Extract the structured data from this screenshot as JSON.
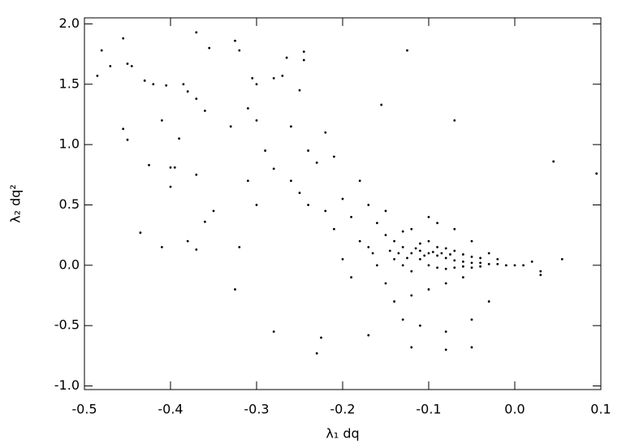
{
  "chart_data": {
    "type": "scatter",
    "xlabel": "λ₁ dq",
    "ylabel": "λ₂ dq²",
    "color": "#000000",
    "xlim": [
      -0.5,
      0.1
    ],
    "ylim": [
      -1.03,
      2.05
    ],
    "xticks": [
      -0.5,
      -0.4,
      -0.3,
      -0.2,
      -0.1,
      {
        "value": 0,
        "label": "0.0"
      },
      0.1
    ],
    "yticks": [
      {
        "value": -1,
        "label": "-1.0"
      },
      -0.5,
      {
        "value": 0,
        "label": "0.0"
      },
      0.5,
      {
        "value": 1,
        "label": "1.0"
      },
      1.5,
      {
        "value": 2,
        "label": "2.0"
      }
    ],
    "x": [
      -0.48,
      -0.47,
      -0.455,
      -0.45,
      -0.445,
      -0.485,
      -0.455,
      -0.45,
      -0.43,
      -0.42,
      -0.405,
      -0.41,
      -0.385,
      -0.38,
      -0.39,
      -0.425,
      -0.4,
      -0.395,
      -0.37,
      -0.36,
      -0.355,
      -0.37,
      -0.37,
      -0.35,
      -0.36,
      -0.38,
      -0.37,
      -0.435,
      -0.41,
      -0.4,
      -0.33,
      -0.325,
      -0.32,
      -0.305,
      -0.3,
      -0.28,
      -0.27,
      -0.265,
      -0.245,
      -0.245,
      -0.25,
      -0.31,
      -0.3,
      -0.29,
      -0.28,
      -0.31,
      -0.3,
      -0.32,
      -0.325,
      -0.28,
      -0.23,
      -0.225,
      -0.26,
      -0.24,
      -0.23,
      -0.22,
      -0.21,
      -0.26,
      -0.25,
      -0.24,
      -0.22,
      -0.2,
      -0.21,
      -0.19,
      -0.18,
      -0.17,
      -0.16,
      -0.15,
      -0.18,
      -0.17,
      -0.2,
      -0.19,
      -0.16,
      -0.155,
      -0.125,
      -0.07,
      0.045,
      0.095,
      -0.15,
      -0.14,
      -0.13,
      -0.12,
      -0.11,
      -0.1,
      -0.09,
      -0.08,
      -0.07,
      -0.06,
      -0.05,
      -0.04,
      -0.03,
      -0.02,
      -0.01,
      0,
      0.01,
      -0.14,
      -0.13,
      -0.12,
      -0.11,
      -0.1,
      -0.09,
      -0.08,
      -0.07,
      -0.06,
      -0.05,
      -0.04,
      -0.13,
      -0.12,
      -0.1,
      -0.09,
      -0.08,
      -0.07,
      -0.06,
      -0.05,
      -0.04,
      -0.15,
      -0.14,
      -0.12,
      -0.1,
      -0.08,
      -0.06,
      -0.13,
      -0.11,
      -0.08,
      -0.05,
      -0.03,
      -0.12,
      -0.08,
      -0.05,
      -0.17,
      -0.1,
      -0.09,
      -0.07,
      -0.05,
      -0.03,
      -0.02,
      0.02,
      0.03,
      0.03,
      0.055,
      -0.11,
      -0.105,
      -0.095,
      -0.085,
      -0.075,
      -0.115,
      -0.125,
      -0.135,
      -0.145,
      -0.165
    ],
    "values": [
      1.78,
      1.65,
      1.88,
      1.67,
      1.65,
      1.57,
      1.13,
      1.04,
      1.53,
      1.5,
      1.49,
      1.2,
      1.5,
      1.44,
      1.05,
      0.83,
      0.81,
      0.81,
      1.38,
      1.28,
      1.8,
      1.93,
      0.75,
      0.45,
      0.36,
      0.2,
      0.13,
      0.27,
      0.15,
      0.65,
      1.15,
      1.86,
      1.78,
      1.55,
      1.5,
      1.55,
      1.57,
      1.72,
      1.77,
      1.7,
      1.45,
      1.3,
      1.2,
      0.95,
      0.8,
      0.7,
      0.5,
      0.15,
      -0.2,
      -0.55,
      -0.73,
      -0.6,
      1.15,
      0.95,
      0.85,
      1.1,
      0.9,
      0.7,
      0.6,
      0.5,
      0.45,
      0.55,
      0.3,
      0.4,
      0.7,
      0.5,
      0.35,
      0.45,
      0.2,
      0.15,
      0.05,
      -0.1,
      0,
      1.33,
      1.78,
      1.2,
      0.86,
      0.76,
      0.25,
      0.2,
      0.15,
      0.1,
      0.05,
      0.1,
      0.08,
      0.06,
      0.04,
      0.03,
      0.02,
      0.02,
      0.01,
      0.01,
      0,
      0,
      0,
      0.05,
      0,
      -0.05,
      0.18,
      0.2,
      0.15,
      0.14,
      0.12,
      0.09,
      0.07,
      0.06,
      0.28,
      0.3,
      0,
      -0.02,
      -0.03,
      -0.02,
      -0.01,
      -0.02,
      -0.01,
      -0.15,
      -0.3,
      -0.25,
      -0.2,
      -0.15,
      -0.1,
      -0.45,
      -0.5,
      -0.55,
      -0.45,
      -0.3,
      -0.68,
      -0.7,
      -0.68,
      -0.58,
      0.4,
      0.35,
      0.3,
      0.2,
      0.1,
      0.05,
      0.03,
      -0.05,
      -0.08,
      0.05,
      0.12,
      0.08,
      0.11,
      0.1,
      0.09,
      0.14,
      0.06,
      0.1,
      0.12,
      0.1
    ]
  }
}
